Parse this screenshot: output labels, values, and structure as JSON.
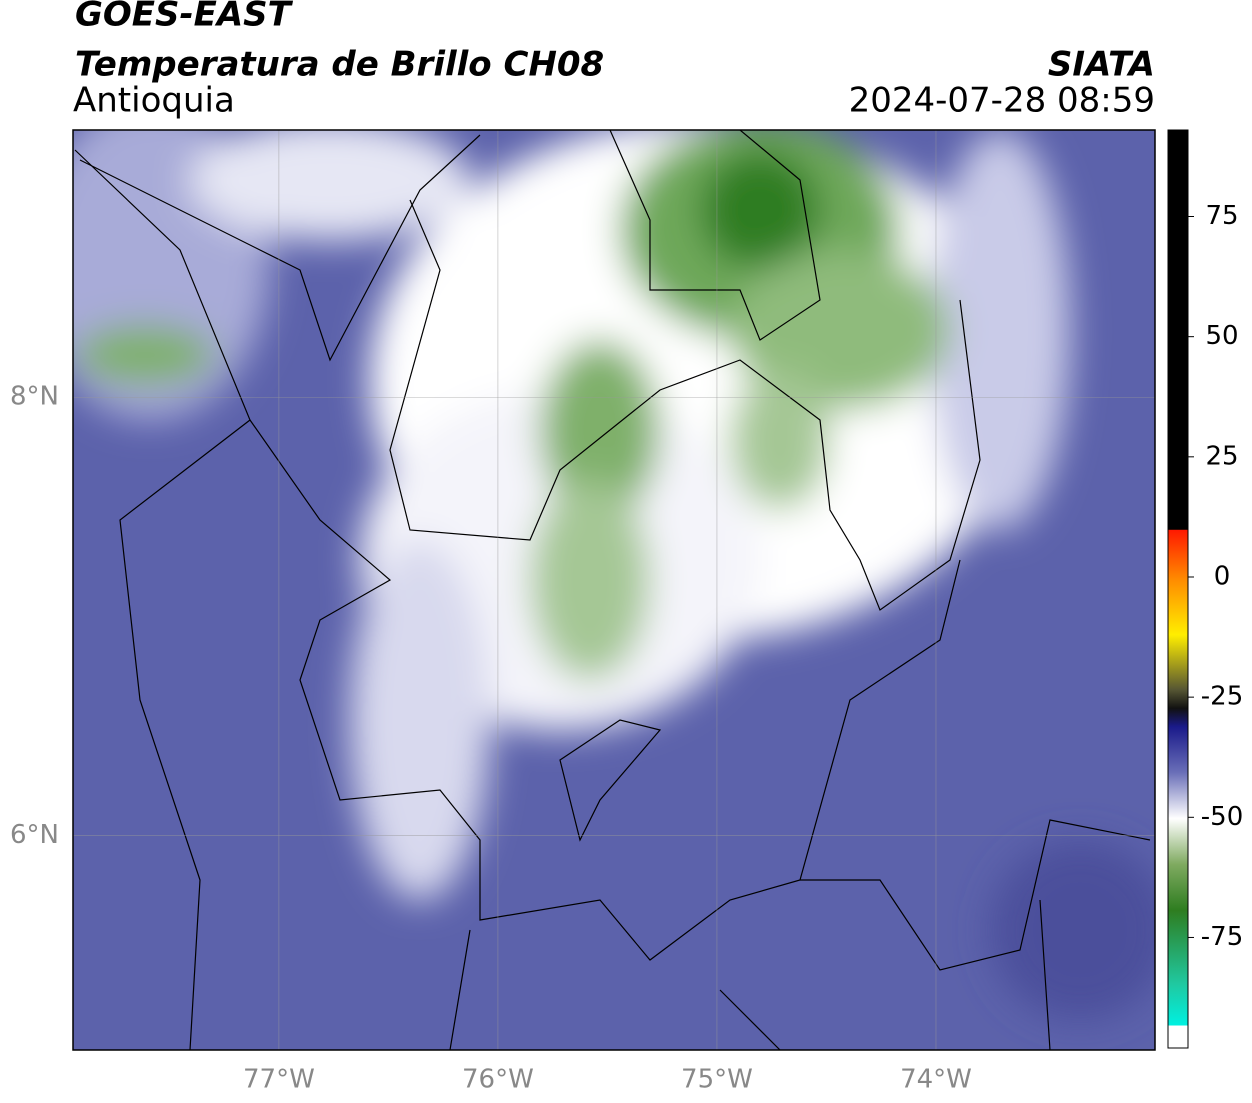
{
  "header": {
    "title": "GOES-EAST",
    "subtitle": "Temperatura de Brillo CH08",
    "region": "Antioquia",
    "source": "SIATA",
    "datetime": "2024-07-28 08:59"
  },
  "map": {
    "xlim": [
      -77.94,
      -73.0
    ],
    "ylim": [
      5.02,
      9.22
    ],
    "xticks": [
      {
        "value": -77,
        "label": "77°W"
      },
      {
        "value": -76,
        "label": "76°W"
      },
      {
        "value": -75,
        "label": "75°W"
      },
      {
        "value": -74,
        "label": "74°W"
      }
    ],
    "yticks": [
      {
        "value": 8,
        "label": "8°N"
      },
      {
        "value": 6,
        "label": "6°N"
      }
    ],
    "grid": true
  },
  "colorbar": {
    "lim": [
      -98,
      93
    ],
    "ticks": [
      75,
      50,
      25,
      0,
      -25,
      -50,
      -75
    ]
  }
}
